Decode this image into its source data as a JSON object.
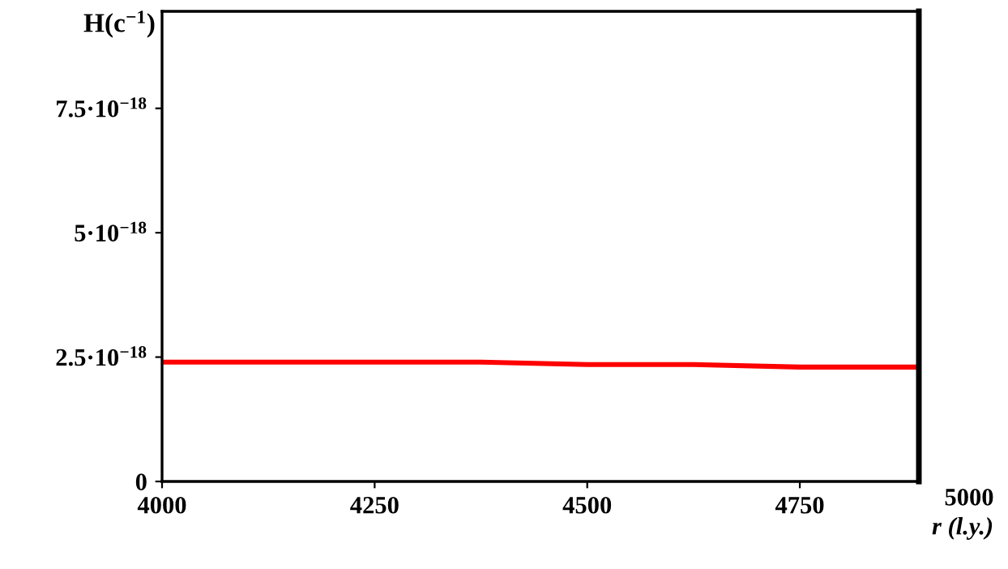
{
  "chart_data": {
    "type": "line",
    "ylabel": "H(c$^{−1}$)",
    "xlabel": "r (l.y.)",
    "x": [
      4000,
      4125,
      4250,
      4375,
      4500,
      4625,
      4750,
      4890
    ],
    "series": [
      {
        "color": "#ff0000",
        "values": [
          2.4e-18,
          2.4e-18,
          2.4e-18,
          2.4e-18,
          2.35e-18,
          2.35e-18,
          2.3e-18,
          2.3e-18
        ]
      }
    ],
    "xlim": [
      4000,
      4890
    ],
    "xticks": [
      4000,
      4250,
      4500,
      4750
    ],
    "ylim": [
      0,
      9.45e-18
    ],
    "yticks": [
      {
        "value": 0,
        "label": "0"
      },
      {
        "value": 2.5e-18,
        "label": "2.5·10$^{−18}$"
      },
      {
        "value": 5e-18,
        "label": "5·10$^{−18}$"
      },
      {
        "value": 7.5e-18,
        "label": "7.5·10$^{−18}$"
      }
    ],
    "annotations": [
      "5000"
    ],
    "grid": false,
    "legend": false,
    "marker": "none",
    "line_style": "solid"
  }
}
